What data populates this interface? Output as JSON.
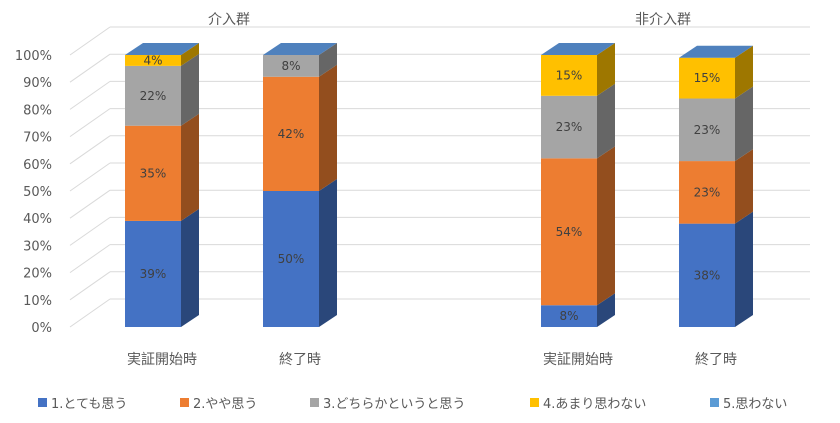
{
  "chart_data": {
    "type": "bar",
    "stacked": true,
    "three_d": true,
    "groups": [
      {
        "title": "介入群",
        "categories": [
          "実証開始時",
          "終了時"
        ]
      },
      {
        "title": "非介入群",
        "categories": [
          "実証開始時",
          "終了時"
        ]
      }
    ],
    "categories": [
      "実証開始時",
      "終了時",
      "実証開始時",
      "終了時"
    ],
    "series": [
      {
        "name": "1.とても思う",
        "color": "#4472C4",
        "values": [
          39,
          50,
          8,
          38
        ]
      },
      {
        "name": "2.やや思う",
        "color": "#ED7D31",
        "values": [
          35,
          42,
          54,
          23
        ]
      },
      {
        "name": "3.どちらかというと思う",
        "color": "#A5A5A5",
        "values": [
          22,
          8,
          23,
          23
        ]
      },
      {
        "name": "4.あまり思わない",
        "color": "#FFC000",
        "values": [
          4,
          0,
          15,
          15
        ]
      },
      {
        "name": "5.思わない",
        "color": "#5B9BD5",
        "values": [
          0,
          0,
          0,
          0
        ]
      }
    ],
    "data_labels": [
      [
        "39%",
        "35%",
        "22%",
        "4%",
        ""
      ],
      [
        "50%",
        "42%",
        "8%",
        "",
        ""
      ],
      [
        "8%",
        "54%",
        "23%",
        "15%",
        ""
      ],
      [
        "38%",
        "23%",
        "23%",
        "15%",
        ""
      ]
    ],
    "y_ticks": [
      "0%",
      "10%",
      "20%",
      "30%",
      "40%",
      "50%",
      "60%",
      "70%",
      "80%",
      "90%",
      "100%"
    ],
    "ylim": [
      0,
      100
    ],
    "grid": true,
    "legend_position": "bottom"
  }
}
